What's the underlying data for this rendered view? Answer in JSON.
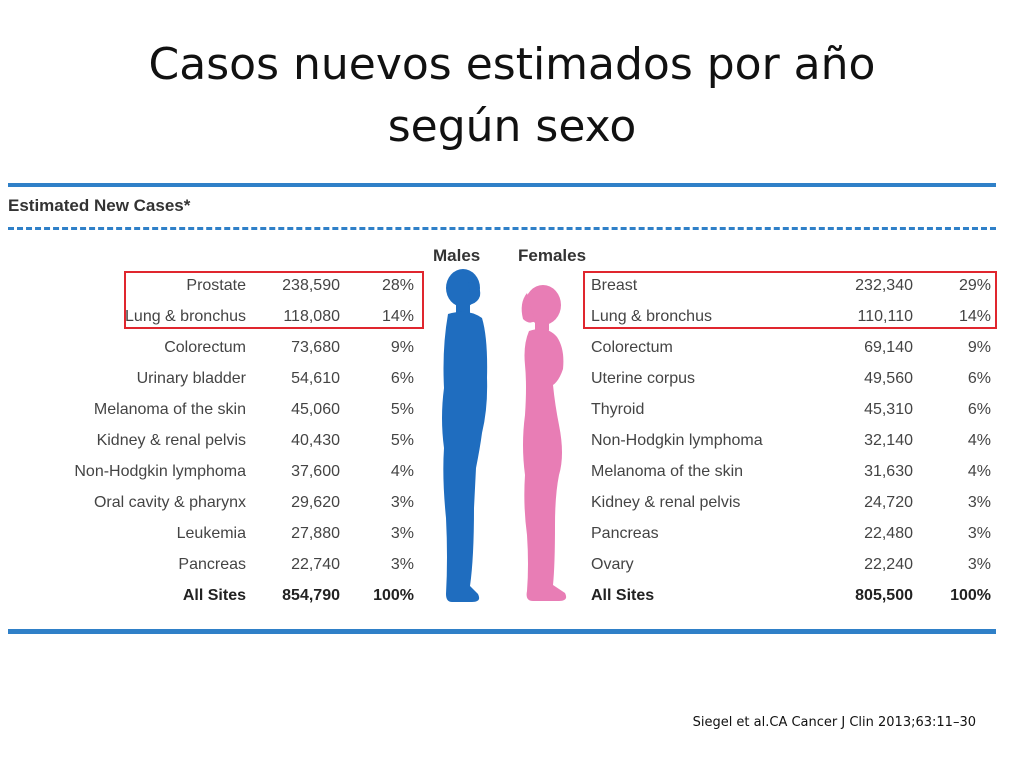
{
  "slide": {
    "title_line1": "Casos nuevos estimados por año",
    "title_line2": "según sexo",
    "citation": "Siegel et al.CA Cancer J Clin 2013;63:11–30"
  },
  "table": {
    "header": "Estimated New Cases*",
    "males_label": "Males",
    "females_label": "Females",
    "males": [
      {
        "site": "Prostate",
        "cases": "238,590",
        "pct": "28%"
      },
      {
        "site": "Lung & bronchus",
        "cases": "118,080",
        "pct": "14%"
      },
      {
        "site": "Colorectum",
        "cases": "73,680",
        "pct": "9%"
      },
      {
        "site": "Urinary bladder",
        "cases": "54,610",
        "pct": "6%"
      },
      {
        "site": "Melanoma of the skin",
        "cases": "45,060",
        "pct": "5%"
      },
      {
        "site": "Kidney & renal pelvis",
        "cases": "40,430",
        "pct": "5%"
      },
      {
        "site": "Non-Hodgkin lymphoma",
        "cases": "37,600",
        "pct": "4%"
      },
      {
        "site": "Oral cavity & pharynx",
        "cases": "29,620",
        "pct": "3%"
      },
      {
        "site": "Leukemia",
        "cases": "27,880",
        "pct": "3%"
      },
      {
        "site": "Pancreas",
        "cases": "22,740",
        "pct": "3%"
      },
      {
        "site": "All Sites",
        "cases": "854,790",
        "pct": "100%"
      }
    ],
    "females": [
      {
        "site": "Breast",
        "cases": "232,340",
        "pct": "29%"
      },
      {
        "site": "Lung & bronchus",
        "cases": "110,110",
        "pct": "14%"
      },
      {
        "site": "Colorectum",
        "cases": "69,140",
        "pct": "9%"
      },
      {
        "site": "Uterine corpus",
        "cases": "49,560",
        "pct": "6%"
      },
      {
        "site": "Thyroid",
        "cases": "45,310",
        "pct": "6%"
      },
      {
        "site": "Non-Hodgkin lymphoma",
        "cases": "32,140",
        "pct": "4%"
      },
      {
        "site": "Melanoma of the skin",
        "cases": "31,630",
        "pct": "4%"
      },
      {
        "site": "Kidney & renal pelvis",
        "cases": "24,720",
        "pct": "3%"
      },
      {
        "site": "Pancreas",
        "cases": "22,480",
        "pct": "3%"
      },
      {
        "site": "Ovary",
        "cases": "22,240",
        "pct": "3%"
      },
      {
        "site": "All Sites",
        "cases": "805,500",
        "pct": "100%"
      }
    ]
  },
  "colors": {
    "male_figure": "#1f6dbf",
    "female_figure": "#e87db5",
    "rule": "#2f80c8",
    "highlight": "#e0262e"
  },
  "icons": {
    "male_figure": "male-silhouette-icon",
    "female_figure": "female-silhouette-icon"
  }
}
